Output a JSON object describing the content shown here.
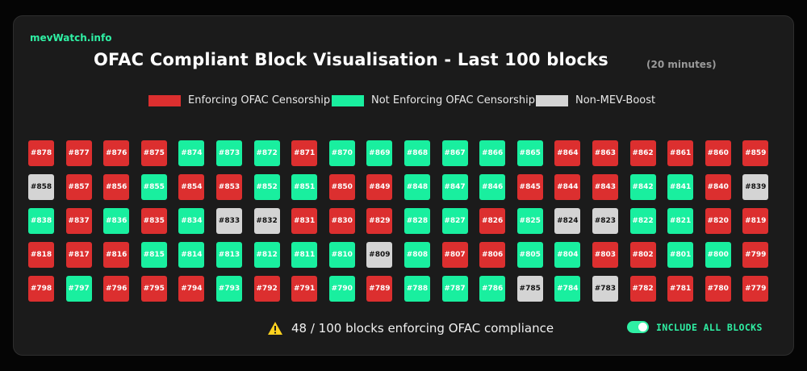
{
  "header": {
    "site_name": "mevWatch.info",
    "title": "OFAC Compliant Block Visualisation - Last 100 blocks",
    "subtitle": "(20 minutes)"
  },
  "colors": {
    "enforcing": "#dc2f2f",
    "not_enforcing": "#19ef9f",
    "non_mev_boost": "#d4d4d4",
    "accent": "#2ff0a4"
  },
  "legend": [
    {
      "label": "Enforcing OFAC Censorship",
      "status": "enforcing"
    },
    {
      "label": "Not Enforcing OFAC Censorship",
      "status": "not_enforcing"
    },
    {
      "label": "Non-MEV-Boost",
      "status": "non_mev_boost"
    }
  ],
  "blocks": [
    {
      "label": "#878",
      "status": "enforcing"
    },
    {
      "label": "#877",
      "status": "enforcing"
    },
    {
      "label": "#876",
      "status": "enforcing"
    },
    {
      "label": "#875",
      "status": "enforcing"
    },
    {
      "label": "#874",
      "status": "not_enforcing"
    },
    {
      "label": "#873",
      "status": "not_enforcing"
    },
    {
      "label": "#872",
      "status": "not_enforcing"
    },
    {
      "label": "#871",
      "status": "enforcing"
    },
    {
      "label": "#870",
      "status": "not_enforcing"
    },
    {
      "label": "#869",
      "status": "not_enforcing"
    },
    {
      "label": "#868",
      "status": "not_enforcing"
    },
    {
      "label": "#867",
      "status": "not_enforcing"
    },
    {
      "label": "#866",
      "status": "not_enforcing"
    },
    {
      "label": "#865",
      "status": "not_enforcing"
    },
    {
      "label": "#864",
      "status": "enforcing"
    },
    {
      "label": "#863",
      "status": "enforcing"
    },
    {
      "label": "#862",
      "status": "enforcing"
    },
    {
      "label": "#861",
      "status": "enforcing"
    },
    {
      "label": "#860",
      "status": "enforcing"
    },
    {
      "label": "#859",
      "status": "enforcing"
    },
    {
      "label": "#858",
      "status": "non_mev_boost"
    },
    {
      "label": "#857",
      "status": "enforcing"
    },
    {
      "label": "#856",
      "status": "enforcing"
    },
    {
      "label": "#855",
      "status": "not_enforcing"
    },
    {
      "label": "#854",
      "status": "enforcing"
    },
    {
      "label": "#853",
      "status": "enforcing"
    },
    {
      "label": "#852",
      "status": "not_enforcing"
    },
    {
      "label": "#851",
      "status": "not_enforcing"
    },
    {
      "label": "#850",
      "status": "enforcing"
    },
    {
      "label": "#849",
      "status": "enforcing"
    },
    {
      "label": "#848",
      "status": "not_enforcing"
    },
    {
      "label": "#847",
      "status": "not_enforcing"
    },
    {
      "label": "#846",
      "status": "not_enforcing"
    },
    {
      "label": "#845",
      "status": "enforcing"
    },
    {
      "label": "#844",
      "status": "enforcing"
    },
    {
      "label": "#843",
      "status": "enforcing"
    },
    {
      "label": "#842",
      "status": "not_enforcing"
    },
    {
      "label": "#841",
      "status": "not_enforcing"
    },
    {
      "label": "#840",
      "status": "enforcing"
    },
    {
      "label": "#839",
      "status": "non_mev_boost"
    },
    {
      "label": "#838",
      "status": "not_enforcing"
    },
    {
      "label": "#837",
      "status": "enforcing"
    },
    {
      "label": "#836",
      "status": "not_enforcing"
    },
    {
      "label": "#835",
      "status": "enforcing"
    },
    {
      "label": "#834",
      "status": "not_enforcing"
    },
    {
      "label": "#833",
      "status": "non_mev_boost"
    },
    {
      "label": "#832",
      "status": "non_mev_boost"
    },
    {
      "label": "#831",
      "status": "enforcing"
    },
    {
      "label": "#830",
      "status": "enforcing"
    },
    {
      "label": "#829",
      "status": "enforcing"
    },
    {
      "label": "#828",
      "status": "not_enforcing"
    },
    {
      "label": "#827",
      "status": "not_enforcing"
    },
    {
      "label": "#826",
      "status": "enforcing"
    },
    {
      "label": "#825",
      "status": "not_enforcing"
    },
    {
      "label": "#824",
      "status": "non_mev_boost"
    },
    {
      "label": "#823",
      "status": "non_mev_boost"
    },
    {
      "label": "#822",
      "status": "not_enforcing"
    },
    {
      "label": "#821",
      "status": "not_enforcing"
    },
    {
      "label": "#820",
      "status": "enforcing"
    },
    {
      "label": "#819",
      "status": "enforcing"
    },
    {
      "label": "#818",
      "status": "enforcing"
    },
    {
      "label": "#817",
      "status": "enforcing"
    },
    {
      "label": "#816",
      "status": "enforcing"
    },
    {
      "label": "#815",
      "status": "not_enforcing"
    },
    {
      "label": "#814",
      "status": "not_enforcing"
    },
    {
      "label": "#813",
      "status": "not_enforcing"
    },
    {
      "label": "#812",
      "status": "not_enforcing"
    },
    {
      "label": "#811",
      "status": "not_enforcing"
    },
    {
      "label": "#810",
      "status": "not_enforcing"
    },
    {
      "label": "#809",
      "status": "non_mev_boost"
    },
    {
      "label": "#808",
      "status": "not_enforcing"
    },
    {
      "label": "#807",
      "status": "enforcing"
    },
    {
      "label": "#806",
      "status": "enforcing"
    },
    {
      "label": "#805",
      "status": "not_enforcing"
    },
    {
      "label": "#804",
      "status": "not_enforcing"
    },
    {
      "label": "#803",
      "status": "enforcing"
    },
    {
      "label": "#802",
      "status": "enforcing"
    },
    {
      "label": "#801",
      "status": "not_enforcing"
    },
    {
      "label": "#800",
      "status": "not_enforcing"
    },
    {
      "label": "#799",
      "status": "enforcing"
    },
    {
      "label": "#798",
      "status": "enforcing"
    },
    {
      "label": "#797",
      "status": "not_enforcing"
    },
    {
      "label": "#796",
      "status": "enforcing"
    },
    {
      "label": "#795",
      "status": "enforcing"
    },
    {
      "label": "#794",
      "status": "enforcing"
    },
    {
      "label": "#793",
      "status": "not_enforcing"
    },
    {
      "label": "#792",
      "status": "enforcing"
    },
    {
      "label": "#791",
      "status": "enforcing"
    },
    {
      "label": "#790",
      "status": "not_enforcing"
    },
    {
      "label": "#789",
      "status": "enforcing"
    },
    {
      "label": "#788",
      "status": "not_enforcing"
    },
    {
      "label": "#787",
      "status": "not_enforcing"
    },
    {
      "label": "#786",
      "status": "not_enforcing"
    },
    {
      "label": "#785",
      "status": "non_mev_boost"
    },
    {
      "label": "#784",
      "status": "not_enforcing"
    },
    {
      "label": "#783",
      "status": "non_mev_boost"
    },
    {
      "label": "#782",
      "status": "enforcing"
    },
    {
      "label": "#781",
      "status": "enforcing"
    },
    {
      "label": "#780",
      "status": "enforcing"
    },
    {
      "label": "#779",
      "status": "enforcing"
    }
  ],
  "status": {
    "icon": "warning-icon",
    "text": "48 / 100 blocks enforcing OFAC compliance"
  },
  "toggle": {
    "label": "INCLUDE ALL BLOCKS",
    "on": true
  }
}
